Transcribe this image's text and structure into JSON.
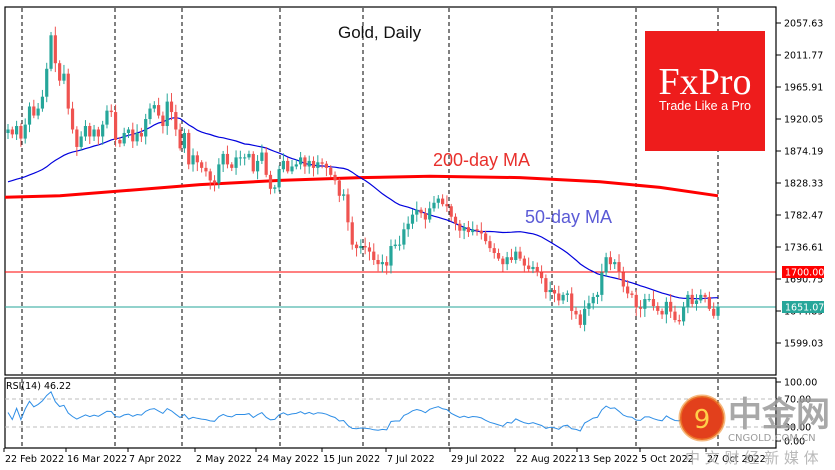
{
  "chart_data": [
    {
      "type": "candlestick",
      "title": "Gold, Daily",
      "xlabel": "",
      "ylabel": "",
      "ylim": [
        1570,
        2090
      ],
      "y_ticks": [
        "2057.63",
        "2011.77",
        "1965.91",
        "1920.05",
        "1874.19",
        "1828.33",
        "1782.47",
        "1736.61",
        "1690.75",
        "1644.89",
        "1599.03"
      ],
      "x_ticks": [
        "22 Feb 2022",
        "16 Mar 2022",
        "7 Apr 2022",
        "2 May 2022",
        "24 May 2022",
        "15 Jun 2022",
        "7 Jul 2022",
        "29 Jul 2022",
        "22 Aug 2022",
        "13 Sep 2022",
        "5 Oct 2022",
        "27 Oct 2022"
      ],
      "grid": "vertical dashed",
      "annotations": [
        {
          "text": "200-day MA",
          "color": "#e8302c"
        },
        {
          "text": "50-day MA",
          "color": "#5b5bd6"
        }
      ],
      "horizontal_levels": [
        {
          "value": 1700.0,
          "label": "1700.00",
          "color": "#ff0000"
        },
        {
          "value": 1651.07,
          "label": "1651.07",
          "color": "#26a69a"
        }
      ],
      "closes": [
        1905,
        1898,
        1910,
        1892,
        1912,
        1938,
        1925,
        1935,
        1952,
        1992,
        2040,
        2000,
        1975,
        1985,
        1935,
        1905,
        1880,
        1895,
        1910,
        1895,
        1905,
        1895,
        1912,
        1932,
        1930,
        1890,
        1885,
        1900,
        1905,
        1888,
        1900,
        1895,
        1920,
        1935,
        1940,
        1925,
        1910,
        1945,
        1930,
        1905,
        1878,
        1900,
        1855,
        1868,
        1858,
        1850,
        1845,
        1832,
        1828,
        1855,
        1870,
        1855,
        1850,
        1865,
        1865,
        1865,
        1870,
        1845,
        1860,
        1872,
        1840,
        1820,
        1822,
        1848,
        1860,
        1845,
        1852,
        1855,
        1865,
        1852,
        1860,
        1850,
        1858,
        1856,
        1850,
        1840,
        1832,
        1810,
        1812,
        1772,
        1740,
        1735,
        1738,
        1736,
        1730,
        1718,
        1712,
        1715,
        1710,
        1738,
        1740,
        1740,
        1762,
        1770,
        1783,
        1790,
        1785,
        1776,
        1792,
        1800,
        1806,
        1798,
        1795,
        1780,
        1770,
        1760,
        1765,
        1758,
        1762,
        1760,
        1756,
        1745,
        1735,
        1728,
        1720,
        1712,
        1722,
        1718,
        1730,
        1720,
        1710,
        1705,
        1708,
        1700,
        1692,
        1672,
        1675,
        1670,
        1660,
        1668,
        1670,
        1645,
        1640,
        1625,
        1648,
        1656,
        1665,
        1668,
        1700,
        1722,
        1712,
        1715,
        1700,
        1680,
        1670,
        1668,
        1650,
        1648,
        1662,
        1662,
        1652,
        1645,
        1640,
        1658,
        1644,
        1632,
        1630,
        1650,
        1668,
        1655,
        1660,
        1668,
        1665,
        1648,
        1638,
        1651
      ],
      "ma50": "declining from ~1940 (Apr) to ~1690 (late Oct)",
      "ma200": "flat ~1810-1845, peaking ~1842 Jun, ~1810 late Oct"
    },
    {
      "type": "line",
      "title": "RSI(14) 46.22",
      "ylim": [
        0,
        100
      ],
      "y_ticks": [
        "100.00",
        "70.00",
        "30.00",
        "0.00"
      ],
      "reference_lines": [
        70,
        30
      ],
      "last_value": 46.22
    }
  ],
  "main_chart": {
    "title": "Gold, Daily",
    "ma200_label": "200-day MA",
    "ma50_label": "50-day MA",
    "price_labels": [
      "2057.63",
      "2011.77",
      "1965.91",
      "1920.05",
      "1874.19",
      "1828.33",
      "1782.47",
      "1736.61",
      "1690.75",
      "1644.89",
      "1599.03"
    ],
    "level_red": "1700.00",
    "level_teal": "1651.07"
  },
  "rsi_panel": {
    "label": "RSI(14) 46.22",
    "labels": [
      "100.00",
      "70.00",
      "30.00",
      "0.00"
    ]
  },
  "dates": [
    "22 Feb 2022",
    "16 Mar 2022",
    "7 Apr 2022",
    "2 May 2022",
    "24 May 2022",
    "15 Jun 2022",
    "7 Jul 2022",
    "29 Jul 2022",
    "22 Aug 2022",
    "13 Sep 2022",
    "5 Oct 2022",
    "27 Oct 2022"
  ],
  "logo": {
    "name": "FxPro",
    "tagline": "Trade Like a Pro",
    "color": "#ee1c1c"
  },
  "watermark": {
    "big": "中金网",
    "site": "CNGOLD.COM.CN",
    "sub": "中 文 财 经 新 媒 体"
  },
  "colors": {
    "bull": "#26a69a",
    "bear": "#ef5350",
    "ma50": "#0000dd",
    "ma200": "#ff0000",
    "rsi": "#2e8ee6"
  }
}
